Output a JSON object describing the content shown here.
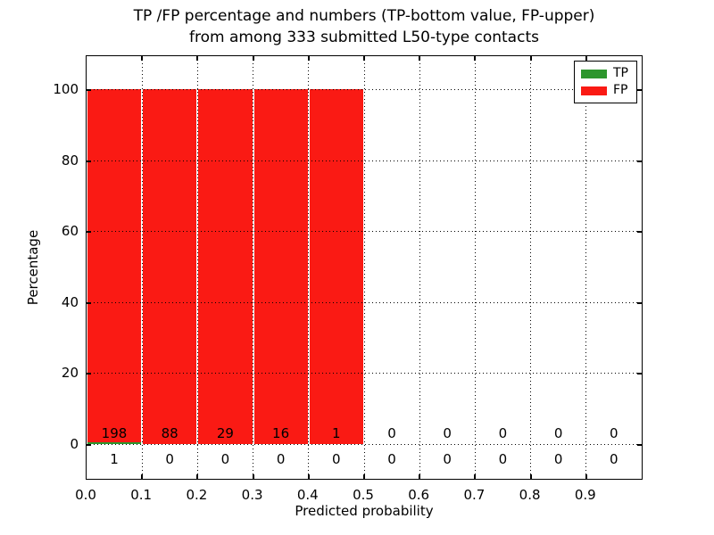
{
  "title": {
    "line1": "TP /FP percentage and numbers (TP-bottom value, FP-upper)",
    "line2": "from among 333 submitted L50-type contacts"
  },
  "chart_data": {
    "type": "bar",
    "stacked": true,
    "title": "TP /FP percentage and numbers (TP-bottom value, FP-upper) from among 333 submitted L50-type contacts",
    "xlabel": "Predicted probability",
    "ylabel": "Percentage",
    "total_submitted": 333,
    "bins": [
      "0.0-0.1",
      "0.1-0.2",
      "0.2-0.3",
      "0.3-0.4",
      "0.4-0.5",
      "0.5-0.6",
      "0.6-0.7",
      "0.7-0.8",
      "0.8-0.9",
      "0.9-1.0"
    ],
    "series": [
      {
        "name": "TP",
        "color": "#2d962d",
        "counts": [
          1,
          0,
          0,
          0,
          0,
          0,
          0,
          0,
          0,
          0
        ],
        "percentages": [
          0.5,
          0,
          0,
          0,
          0,
          0,
          0,
          0,
          0,
          0
        ]
      },
      {
        "name": "FP",
        "color": "#fa1a14",
        "counts": [
          198,
          88,
          29,
          16,
          1,
          0,
          0,
          0,
          0,
          0
        ],
        "percentages": [
          99.5,
          100,
          100,
          100,
          100,
          0,
          0,
          0,
          0,
          0
        ]
      }
    ],
    "count_label_note": "TP counts shown below the zero line, FP counts shown above it",
    "xticks": [
      "0.0",
      "0.1",
      "0.2",
      "0.3",
      "0.4",
      "0.5",
      "0.6",
      "0.7",
      "0.8",
      "0.9"
    ],
    "yticks": [
      0,
      20,
      40,
      60,
      80,
      100
    ],
    "xlim": [
      0.0,
      1.0
    ],
    "ylim": [
      -10.3,
      109.5
    ],
    "grid": true,
    "grid_style": "dotted",
    "legend_position": "upper right"
  },
  "legend": {
    "items": [
      {
        "label": "TP",
        "color": "#2d962d"
      },
      {
        "label": "FP",
        "color": "#fa1a14"
      }
    ]
  },
  "colors": {
    "tp": "#2d962d",
    "fp": "#fa1a14",
    "axis": "#000000",
    "background": "#ffffff"
  }
}
